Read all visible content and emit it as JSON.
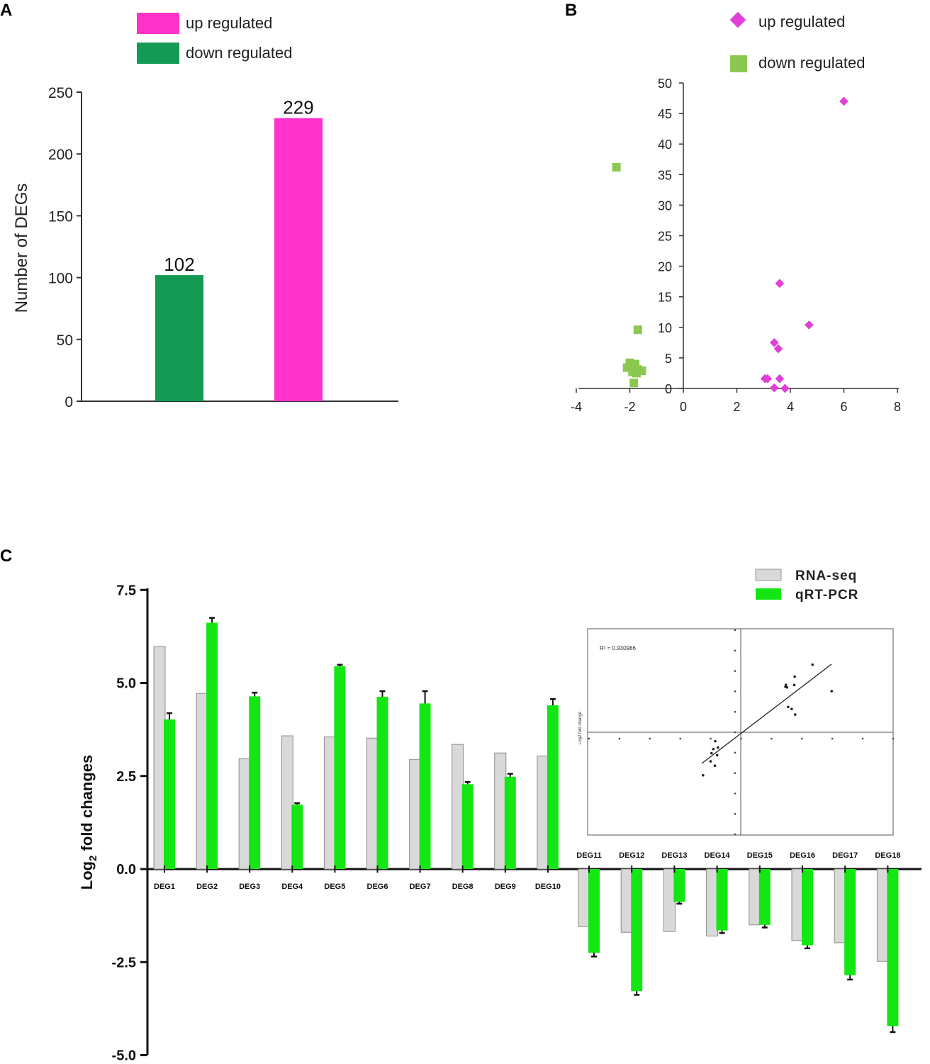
{
  "colors": {
    "up": "#ff33cc",
    "down": "#139a55",
    "up_marker": "#e040d6",
    "down_marker": "#8cc850",
    "rna": "#d9d9d9",
    "qpcr": "#14e614"
  },
  "panel_a": {
    "label": "A",
    "chart_data": {
      "type": "bar",
      "categories": [
        "down regulated",
        "up regulated"
      ],
      "values": [
        102,
        229
      ],
      "value_labels": [
        "102",
        "229"
      ],
      "ylabel": "Number of DEGs",
      "ylim": [
        0,
        250
      ],
      "yticks": [
        0,
        50,
        100,
        150,
        200,
        250
      ],
      "legend": [
        {
          "name": "up regulated",
          "color": "#ff33cc"
        },
        {
          "name": "down regulated",
          "color": "#139a55"
        }
      ]
    }
  },
  "panel_b": {
    "label": "B",
    "chart_data": {
      "type": "scatter",
      "xlim": [
        -4,
        8
      ],
      "ylim": [
        0,
        50
      ],
      "xticks": [
        -4,
        -2,
        0,
        2,
        4,
        6,
        8
      ],
      "yticks": [
        0,
        5,
        10,
        15,
        20,
        25,
        30,
        35,
        40,
        45,
        50
      ],
      "legend": [
        {
          "name": "up regulated",
          "marker": "diamond"
        },
        {
          "name": "down regulated",
          "marker": "square"
        }
      ],
      "series": [
        {
          "name": "up regulated",
          "points": [
            [
              6.0,
              47
            ],
            [
              3.6,
              17.2
            ],
            [
              4.7,
              10.4
            ],
            [
              3.4,
              7.5
            ],
            [
              3.55,
              6.5
            ],
            [
              3.05,
              1.6
            ],
            [
              3.15,
              1.6
            ],
            [
              3.6,
              1.6
            ],
            [
              3.4,
              0.1
            ],
            [
              3.8,
              0.0
            ]
          ]
        },
        {
          "name": "down regulated",
          "points": [
            [
              -2.5,
              36.2
            ],
            [
              -1.7,
              9.6
            ],
            [
              -2.0,
              4.2
            ],
            [
              -1.8,
              4.0
            ],
            [
              -2.1,
              3.4
            ],
            [
              -1.7,
              3.1
            ],
            [
              -1.55,
              2.9
            ],
            [
              -1.9,
              2.7
            ],
            [
              -1.75,
              2.5
            ],
            [
              -1.85,
              0.9
            ]
          ]
        }
      ]
    }
  },
  "panel_c": {
    "label": "C",
    "chart_data": {
      "type": "bar",
      "ylabel": "Log2 fold changes",
      "ylabel_parts": [
        "Log",
        "2",
        " fold changes"
      ],
      "ylim": [
        -5.0,
        7.5
      ],
      "yticks": [
        -5.0,
        -2.5,
        0.0,
        2.5,
        5.0,
        7.5
      ],
      "ytick_labels": [
        "-5.0",
        "-2.5",
        "0.0",
        "2.5",
        "5.0",
        "7.5"
      ],
      "categories": [
        "DEG1",
        "DEG2",
        "DEG3",
        "DEG4",
        "DEG5",
        "DEG6",
        "DEG7",
        "DEG8",
        "DEG9",
        "DEG10",
        "DEG11",
        "DEG12",
        "DEG13",
        "DEG14",
        "DEG15",
        "DEG16",
        "DEG17",
        "DEG18"
      ],
      "series": [
        {
          "name": "RNA-seq",
          "values": [
            5.98,
            4.72,
            2.97,
            3.58,
            3.55,
            3.52,
            2.94,
            3.35,
            3.12,
            3.04,
            -1.55,
            -1.7,
            -1.68,
            -1.8,
            -1.5,
            -1.92,
            -1.98,
            -2.48
          ]
        },
        {
          "name": "qRT-PCR",
          "values": [
            4.02,
            6.62,
            4.64,
            1.73,
            5.45,
            4.63,
            4.45,
            2.28,
            2.48,
            4.4,
            -2.25,
            -3.28,
            -0.88,
            -1.65,
            -1.5,
            -2.05,
            -2.85,
            -4.22
          ],
          "errors": [
            0.17,
            0.13,
            0.1,
            0.04,
            0.04,
            0.15,
            0.33,
            0.06,
            0.08,
            0.17,
            0.1,
            0.1,
            0.05,
            0.07,
            0.07,
            0.08,
            0.12,
            0.16
          ]
        }
      ],
      "inset": {
        "type": "scatter",
        "annotation": "R² = 0.930986",
        "ylabel": "Log2 fold change"
      }
    }
  }
}
